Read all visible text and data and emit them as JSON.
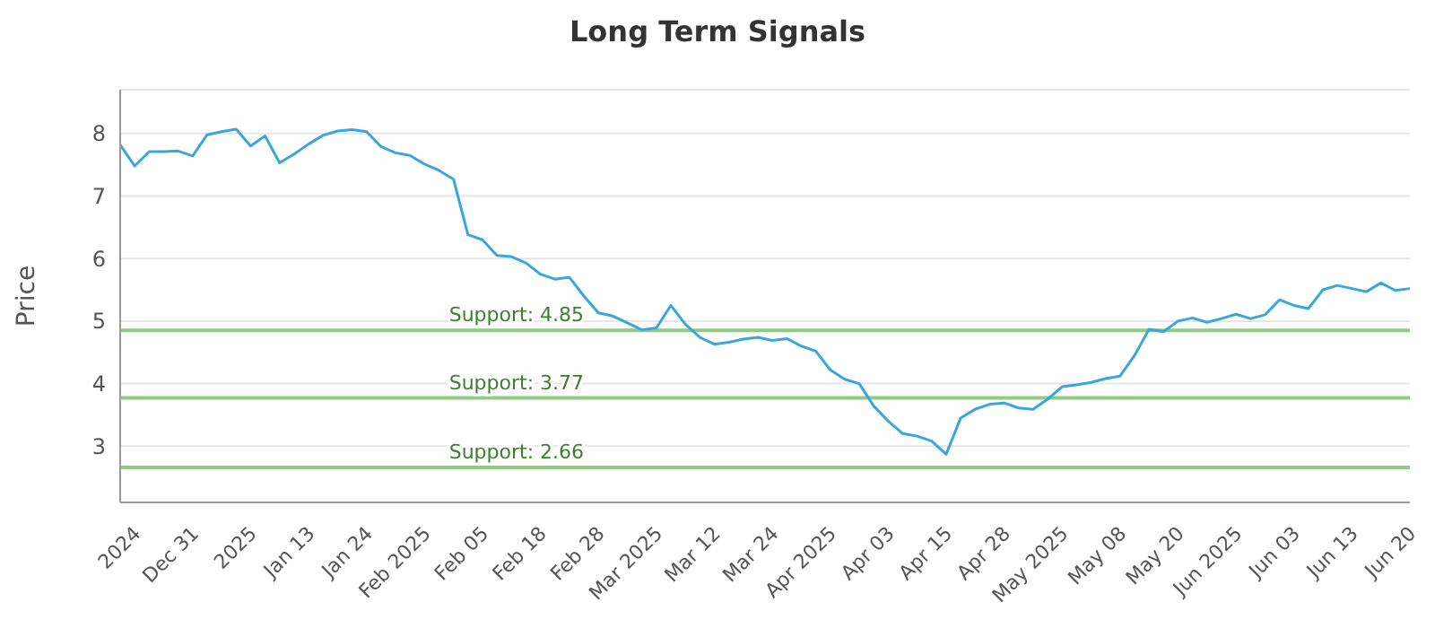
{
  "chart_data": {
    "type": "line",
    "title": "Long Term Signals",
    "ylabel": "Price",
    "categories": [
      null,
      "2024",
      null,
      null,
      null,
      "Dec 31",
      null,
      null,
      null,
      "2025",
      null,
      null,
      null,
      "Jan 13",
      null,
      null,
      null,
      "Jan 24",
      null,
      null,
      null,
      "Feb 2025",
      null,
      null,
      null,
      "Feb 05",
      null,
      null,
      null,
      "Feb 18",
      null,
      null,
      null,
      "Feb 28",
      null,
      null,
      null,
      "Mar 2025",
      null,
      null,
      null,
      "Mar 12",
      null,
      null,
      null,
      "Mar 24",
      null,
      null,
      null,
      "Apr 2025",
      null,
      null,
      null,
      "Apr 03",
      null,
      null,
      null,
      "Apr 15",
      null,
      null,
      null,
      "Apr 28",
      null,
      null,
      null,
      "May 2025",
      null,
      null,
      null,
      "May 08",
      null,
      null,
      null,
      "May 20",
      null,
      null,
      null,
      "Jun 2025",
      null,
      null,
      null,
      "Jun 03",
      null,
      null,
      null,
      "Jun 13",
      null,
      null,
      null,
      "Jun 20"
    ],
    "series": [
      {
        "color": "#3aa6dd",
        "values": [
          7.82,
          7.48,
          7.71,
          7.71,
          7.72,
          7.64,
          7.98,
          8.03,
          8.07,
          7.8,
          7.96,
          7.53,
          7.67,
          7.83,
          7.97,
          8.04,
          8.06,
          8.03,
          7.79,
          7.69,
          7.65,
          7.51,
          7.41,
          7.27,
          6.38,
          6.3,
          6.05,
          6.03,
          5.93,
          5.75,
          5.67,
          5.7,
          5.4,
          5.13,
          5.08,
          4.97,
          4.86,
          4.89,
          5.25,
          4.95,
          4.74,
          4.63,
          4.66,
          4.71,
          4.74,
          4.69,
          4.72,
          4.6,
          4.52,
          4.22,
          4.07,
          4.0,
          3.64,
          3.4,
          3.2,
          3.16,
          3.08,
          2.87,
          3.45,
          3.59,
          3.67,
          3.69,
          3.61,
          3.59,
          3.75,
          3.95,
          3.98,
          4.02,
          4.08,
          4.12,
          4.45,
          4.87,
          4.83,
          5.0,
          5.05,
          4.98,
          5.04,
          5.11,
          5.04,
          5.1,
          5.34,
          5.25,
          5.2,
          5.5,
          5.57,
          5.52,
          5.47,
          5.61,
          5.49,
          5.52
        ]
      }
    ],
    "ylim": [
      2.1,
      8.7
    ],
    "yticks": [
      3,
      4,
      5,
      6,
      7,
      8
    ],
    "grid": "y",
    "marker": "none",
    "line_style": "solid",
    "ref_lines": [
      {
        "axis": "y",
        "value": 4.85,
        "label": "Support: 4.85",
        "color": "#8fcb80"
      },
      {
        "axis": "y",
        "value": 3.77,
        "label": "Support: 3.77",
        "color": "#8fcb80"
      },
      {
        "axis": "y",
        "value": 2.66,
        "label": "Support: 2.66",
        "color": "#8fcb80"
      }
    ]
  }
}
